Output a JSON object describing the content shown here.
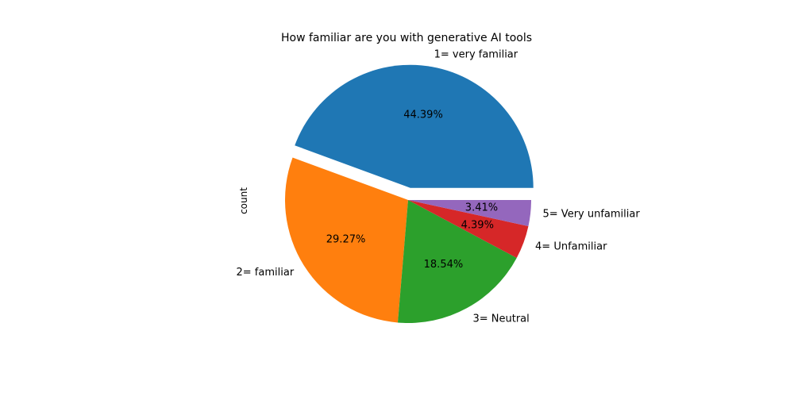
{
  "chart_data": {
    "type": "pie",
    "title": "How familiar are you with generative AI tools",
    "ylabel": "count",
    "categories": [
      "1= very familiar",
      "2= familiar",
      "3= Neutral",
      "4= Unfamiliar",
      "5= Very unfamiliar"
    ],
    "values": [
      44.39,
      29.27,
      18.54,
      4.39,
      3.41
    ],
    "pct_labels": [
      "44.39%",
      "29.27%",
      "18.54%",
      "4.39%",
      "3.41%"
    ],
    "colors": [
      "#1f77b4",
      "#ff7f0e",
      "#2ca02c",
      "#d62728",
      "#9467bd"
    ],
    "exploded": [
      true,
      false,
      false,
      false,
      false
    ],
    "start_angle": 0,
    "direction": "counterclockwise"
  }
}
